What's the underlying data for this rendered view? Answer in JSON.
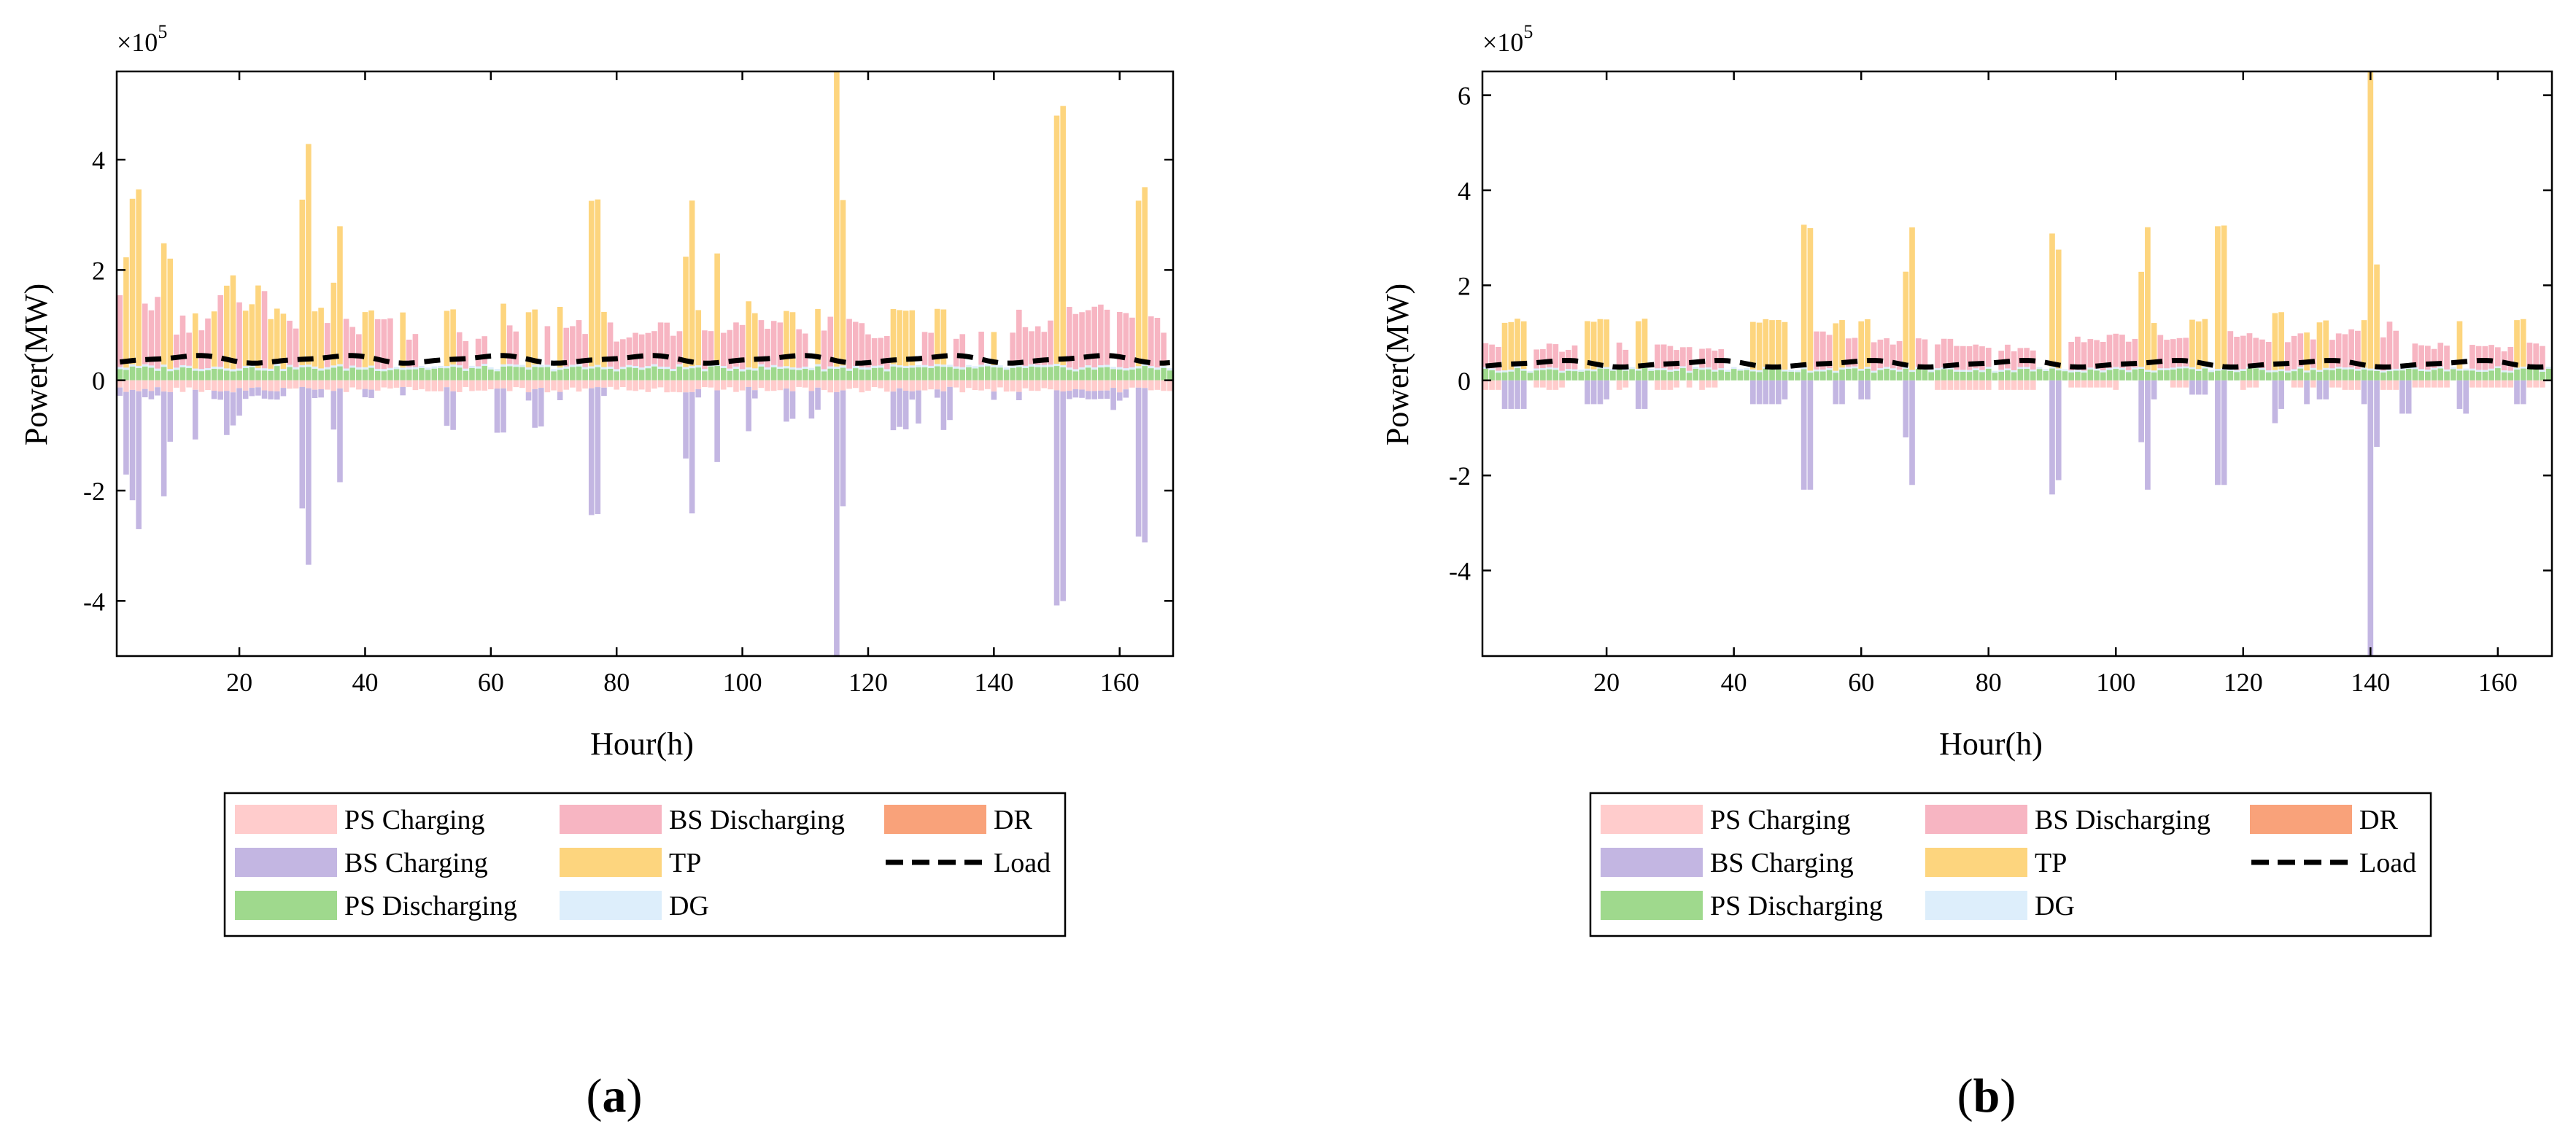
{
  "figure": {
    "panel_labels": [
      {
        "open": "(",
        "letter": "a",
        "close": ")"
      },
      {
        "open": "(",
        "letter": "b",
        "close": ")"
      }
    ]
  },
  "legend": [
    {
      "key": "ps_charging",
      "label": "PS Charging",
      "color": "#FFCCCC",
      "kind": "patch"
    },
    {
      "key": "bs_discharging",
      "label": "BS Discharging",
      "color": "#F7B5C2",
      "kind": "patch"
    },
    {
      "key": "dr",
      "label": "DR",
      "color": "#F9A27A",
      "kind": "patch"
    },
    {
      "key": "bs_charging",
      "label": "BS Charging",
      "color": "#C3B6E2",
      "kind": "patch"
    },
    {
      "key": "tp",
      "label": "TP",
      "color": "#FDD57E",
      "kind": "patch"
    },
    {
      "key": "load",
      "label": "Load",
      "color": "#000000",
      "kind": "dashed-line"
    },
    {
      "key": "ps_discharging",
      "label": "PS Discharging",
      "color": "#9FD98D",
      "kind": "patch"
    },
    {
      "key": "dg",
      "label": "DG",
      "color": "#DDEEFB",
      "kind": "patch"
    }
  ],
  "chart_data": [
    {
      "panel": "a",
      "type": "bar",
      "stacked": true,
      "xlabel": "Hour(h)",
      "ylabel": "Power(MW)",
      "scale_label": "×10",
      "scale_exponent": "5",
      "xlim": [
        1,
        168
      ],
      "ylim": [
        -5.0,
        5.6
      ],
      "xticks": [
        20,
        40,
        60,
        80,
        100,
        120,
        140,
        160
      ],
      "yticks": [
        -4,
        -2,
        0,
        2,
        4
      ],
      "grid": false,
      "units_note": "y values in units of 1e5 MW",
      "peaks": {
        "tp": {
          "2": 2.0,
          "3": 3.0,
          "4": 3.2,
          "8": 2.2,
          "9": 2.0,
          "13": 1.0,
          "16": 1.0,
          "18": 1.5,
          "19": 1.7,
          "21": 1.0,
          "22": 1.1,
          "23": 1.5,
          "25": 0.9,
          "26": 1.0,
          "27": 1.0,
          "30": 3.0,
          "31": 4.0,
          "32": 1.0,
          "33": 1.1,
          "35": 1.5,
          "36": 2.5,
          "40": 1.0,
          "41": 1.0,
          "46": 1.0,
          "53": 1.0,
          "54": 1.0,
          "62": 1.1,
          "66": 1.0,
          "67": 1.0,
          "71": 1.1,
          "76": 3.0,
          "77": 3.0,
          "78": 1.0,
          "91": 2.0,
          "92": 3.0,
          "93": 1.0,
          "96": 2.0,
          "101": 1.2,
          "102": 1.0,
          "107": 1.0,
          "108": 1.0,
          "112": 1.0,
          "115": 5.6,
          "116": 3.0,
          "124": 1.0,
          "125": 1.0,
          "126": 1.0,
          "127": 1.0,
          "131": 1.0,
          "132": 1.0,
          "140": 0.6,
          "150": 4.5,
          "151": 4.7,
          "163": 3.0,
          "164": 3.2
        },
        "bs_charging": {
          "2": -1.5,
          "3": -2.0,
          "4": -2.5,
          "8": -1.9,
          "9": -0.9,
          "13": -0.9,
          "18": -0.8,
          "19": -0.6,
          "20": -0.5,
          "30": -2.2,
          "31": -3.2,
          "35": -0.7,
          "36": -1.7,
          "53": -0.7,
          "54": -0.7,
          "61": -0.8,
          "62": -0.8,
          "67": -0.7,
          "68": -0.7,
          "76": -2.3,
          "77": -2.3,
          "91": -1.2,
          "92": -2.2,
          "96": -1.3,
          "101": -0.8,
          "107": -0.6,
          "108": -0.5,
          "111": -0.5,
          "112": -0.4,
          "115": -5.0,
          "116": -2.1,
          "124": -0.7,
          "125": -0.7,
          "126": -0.7,
          "128": -0.6,
          "132": -0.7,
          "133": -0.6,
          "150": -3.9,
          "151": -3.8,
          "159": -0.4,
          "163": -2.7,
          "164": -2.8
        },
        "bs_discharging": {
          "1": 1.3,
          "5": 1.1,
          "6": 1.0,
          "7": 1.3,
          "10": 0.6,
          "11": 0.9,
          "12": 0.6,
          "14": 0.7,
          "15": 0.9,
          "17": 1.3,
          "20": 1.2,
          "24": 1.4,
          "28": 0.8,
          "29": 0.7,
          "34": 0.8,
          "37": 0.9,
          "38": 0.7,
          "39": 0.6,
          "42": 0.9,
          "43": 0.9,
          "44": 0.9,
          "47": 0.5,
          "48": 0.6,
          "55": 0.6,
          "56": 0.5,
          "58": 0.5,
          "59": 0.5,
          "63": 0.7,
          "64": 0.6,
          "69": 0.7,
          "72": 0.7,
          "73": 0.7,
          "74": 0.8,
          "75": 0.6,
          "79": 0.8,
          "80": 0.5,
          "81": 0.5,
          "82": 0.5,
          "83": 0.6,
          "84": 0.6,
          "85": 0.6,
          "86": 0.6,
          "87": 0.8,
          "88": 0.8,
          "89": 0.6,
          "90": 0.6,
          "94": 0.7,
          "95": 0.6,
          "97": 0.6,
          "98": 0.7,
          "99": 0.8,
          "100": 0.8,
          "103": 0.8,
          "104": 0.7,
          "105": 0.8,
          "106": 0.8,
          "109": 0.7,
          "110": 0.6,
          "113": 0.7,
          "114": 0.9,
          "117": 0.9,
          "118": 0.8,
          "119": 0.8,
          "120": 0.6,
          "121": 0.5,
          "122": 0.5,
          "123": 0.6,
          "129": 0.6,
          "130": 0.6,
          "134": 0.5,
          "135": 0.6,
          "138": 0.6,
          "143": 0.6,
          "144": 1.0,
          "145": 0.7,
          "146": 0.6,
          "147": 0.7,
          "148": 0.6,
          "149": 0.8,
          "152": 1.1,
          "153": 1.0,
          "154": 1.0,
          "155": 1.0,
          "156": 1.1,
          "157": 1.1,
          "158": 1.0,
          "160": 1.0,
          "161": 1.0,
          "162": 0.9,
          "165": 0.9,
          "166": 0.9,
          "167": 0.6
        }
      },
      "series": [
        {
          "name": "TP",
          "values": "see peaks.tp (hour -> 1e5 MW); 0 elsewhere"
        },
        {
          "name": "BS Charging",
          "values": "see peaks.bs_charging (hour -> 1e5 MW); ~-0.2 elsewhere"
        },
        {
          "name": "BS Discharging",
          "values": "see peaks.bs_discharging (hour -> 1e5 MW); 0 elsewhere"
        },
        {
          "name": "PS Charging",
          "values": "approx -0.2 on most hours"
        },
        {
          "name": "PS Discharging",
          "values": "approx 0.2 on most hours"
        },
        {
          "name": "DG",
          "values": "approx 0.05"
        },
        {
          "name": "DR",
          "values": "approx 0"
        },
        {
          "name": "Load",
          "values": "approx 0.3 to 0.5, daily cycle"
        }
      ]
    },
    {
      "panel": "b",
      "type": "bar",
      "stacked": true,
      "xlabel": "Hour(h)",
      "ylabel": "Power(MW)",
      "scale_label": "×10",
      "scale_exponent": "5",
      "xlim": [
        1,
        168
      ],
      "ylim": [
        -5.8,
        6.5
      ],
      "xticks": [
        20,
        40,
        60,
        80,
        100,
        120,
        140,
        160
      ],
      "yticks": [
        -4,
        -2,
        0,
        2,
        4,
        6
      ],
      "grid": false,
      "units_note": "y values in units of 1e5 MW",
      "peaks": {
        "tp": {
          "4": 1.0,
          "5": 1.0,
          "6": 1.0,
          "7": 1.0,
          "17": 1.0,
          "18": 1.0,
          "19": 1.0,
          "20": 1.0,
          "25": 1.0,
          "26": 1.0,
          "43": 1.0,
          "44": 1.0,
          "45": 1.0,
          "46": 1.0,
          "47": 1.0,
          "48": 1.0,
          "51": 3.0,
          "52": 3.0,
          "56": 1.0,
          "57": 1.0,
          "60": 1.0,
          "61": 1.0,
          "67": 2.0,
          "68": 3.0,
          "90": 2.8,
          "91": 2.5,
          "104": 2.0,
          "105": 3.0,
          "106": 1.0,
          "112": 1.0,
          "113": 1.0,
          "114": 1.0,
          "116": 3.0,
          "117": 3.0,
          "125": 1.2,
          "126": 1.2,
          "130": 0.8,
          "132": 1.0,
          "133": 1.0,
          "139": 1.0,
          "140": 6.5,
          "141": 2.2,
          "154": 1.0,
          "163": 1.0,
          "164": 1.0
        },
        "bs_charging": {
          "4": -0.6,
          "5": -0.6,
          "6": -0.6,
          "7": -0.6,
          "17": -0.5,
          "18": -0.5,
          "19": -0.5,
          "20": -0.4,
          "25": -0.6,
          "26": -0.6,
          "43": -0.5,
          "44": -0.5,
          "45": -0.5,
          "46": -0.5,
          "47": -0.5,
          "48": -0.4,
          "51": -2.3,
          "52": -2.3,
          "56": -0.5,
          "57": -0.5,
          "60": -0.4,
          "61": -0.4,
          "67": -1.2,
          "68": -2.2,
          "90": -2.4,
          "91": -2.1,
          "104": -1.3,
          "105": -2.3,
          "106": -0.4,
          "112": -0.3,
          "113": -0.3,
          "114": -0.3,
          "116": -2.2,
          "117": -2.2,
          "125": -0.9,
          "126": -0.6,
          "130": -0.5,
          "132": -0.4,
          "133": -0.4,
          "139": -0.5,
          "140": -5.8,
          "141": -1.4,
          "145": -0.7,
          "146": -0.7,
          "154": -0.6,
          "155": -0.7,
          "163": -0.5,
          "164": -0.5
        },
        "bs_discharging": {
          "1": 0.5,
          "2": 0.5,
          "3": 0.5,
          "9": 0.4,
          "10": 0.4,
          "11": 0.5,
          "12": 0.5,
          "13": 0.4,
          "14": 0.4,
          "15": 0.5,
          "22": 0.5,
          "23": 0.4,
          "28": 0.5,
          "29": 0.5,
          "30": 0.5,
          "31": 0.4,
          "32": 0.4,
          "33": 0.5,
          "35": 0.4,
          "36": 0.4,
          "37": 0.4,
          "38": 0.4,
          "53": 0.8,
          "54": 0.8,
          "55": 0.7,
          "58": 0.6,
          "59": 0.6,
          "62": 0.6,
          "63": 0.6,
          "64": 0.6,
          "65": 0.5,
          "66": 0.6,
          "69": 0.6,
          "70": 0.6,
          "72": 0.5,
          "73": 0.6,
          "74": 0.6,
          "75": 0.5,
          "76": 0.5,
          "77": 0.5,
          "78": 0.5,
          "79": 0.5,
          "80": 0.4,
          "82": 0.4,
          "83": 0.5,
          "84": 0.4,
          "85": 0.4,
          "86": 0.4,
          "87": 0.4,
          "93": 0.6,
          "94": 0.7,
          "95": 0.6,
          "96": 0.6,
          "97": 0.6,
          "98": 0.6,
          "99": 0.7,
          "100": 0.7,
          "101": 0.7,
          "102": 0.6,
          "103": 0.6,
          "107": 0.7,
          "108": 0.6,
          "109": 0.6,
          "110": 0.6,
          "111": 0.6,
          "118": 0.8,
          "119": 0.7,
          "120": 0.7,
          "121": 0.7,
          "122": 0.6,
          "123": 0.6,
          "124": 0.6,
          "127": 0.6,
          "128": 0.7,
          "129": 0.7,
          "131": 0.6,
          "134": 0.6,
          "135": 0.7,
          "136": 0.7,
          "137": 0.8,
          "138": 0.8,
          "142": 0.7,
          "143": 1.0,
          "144": 0.8,
          "147": 0.5,
          "148": 0.5,
          "149": 0.5,
          "150": 0.4,
          "151": 0.5,
          "152": 0.5,
          "156": 0.5,
          "157": 0.5,
          "158": 0.5,
          "159": 0.5,
          "160": 0.4,
          "161": 0.4,
          "162": 0.5,
          "165": 0.5,
          "166": 0.5,
          "167": 0.5
        },
        "ps_charging": {
          "1": -0.2,
          "2": -0.2,
          "3": -0.2,
          "9": -0.15,
          "10": -0.15,
          "11": -0.2,
          "12": -0.2,
          "13": -0.15,
          "22": -0.2,
          "23": -0.15,
          "28": -0.2,
          "29": -0.2,
          "30": -0.2,
          "31": -0.15,
          "33": -0.15,
          "35": -0.2,
          "36": -0.15,
          "37": -0.15,
          "72": -0.2,
          "73": -0.2,
          "74": -0.2,
          "75": -0.2,
          "76": -0.2,
          "77": -0.2,
          "78": -0.2,
          "79": -0.2,
          "80": -0.2,
          "82": -0.2,
          "83": -0.2,
          "84": -0.2,
          "85": -0.2,
          "86": -0.2,
          "87": -0.2,
          "93": -0.15,
          "94": -0.15,
          "95": -0.15,
          "96": -0.15,
          "97": -0.15,
          "98": -0.15,
          "99": -0.15,
          "100": -0.2,
          "109": -0.15,
          "110": -0.15,
          "111": -0.15,
          "120": -0.2,
          "121": -0.15,
          "122": -0.15,
          "128": -0.15,
          "129": -0.15,
          "131": -0.15,
          "134": -0.15,
          "135": -0.15,
          "136": -0.2,
          "137": -0.2,
          "138": -0.2,
          "142": -0.2,
          "143": -0.2,
          "144": -0.2,
          "147": -0.15,
          "148": -0.15,
          "149": -0.15,
          "150": -0.15,
          "151": -0.15,
          "152": -0.15,
          "156": -0.15,
          "157": -0.15,
          "158": -0.15,
          "159": -0.15,
          "160": -0.15,
          "161": -0.15,
          "162": -0.15,
          "165": -0.15,
          "166": -0.15,
          "167": -0.15
        }
      },
      "series": [
        {
          "name": "TP",
          "values": "see peaks.tp (hour -> 1e5 MW); 0 elsewhere"
        },
        {
          "name": "BS Charging",
          "values": "see peaks.bs_charging (hour -> 1e5 MW); 0 elsewhere"
        },
        {
          "name": "BS Discharging",
          "values": "see peaks.bs_discharging (hour -> 1e5 MW); 0 elsewhere"
        },
        {
          "name": "PS Charging",
          "values": "see peaks.ps_charging (hour -> 1e5 MW); 0 elsewhere"
        },
        {
          "name": "PS Discharging",
          "values": "approx 0.25 on most hours"
        },
        {
          "name": "DG",
          "values": "approx 0.05"
        },
        {
          "name": "DR",
          "values": "approx 0"
        },
        {
          "name": "Load",
          "values": "approx 0.3 to 0.45, daily cycle"
        }
      ]
    }
  ]
}
